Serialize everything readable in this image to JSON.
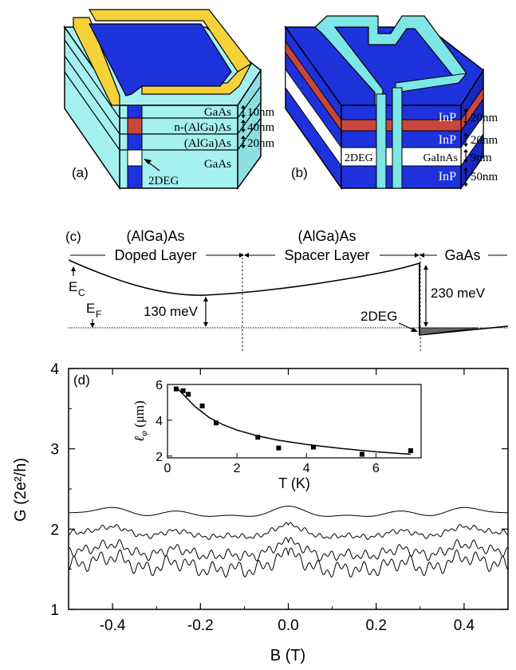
{
  "panel_a": {
    "label": "(a)",
    "layers": [
      "GaAs",
      "n-(AlGa)As",
      "(AlGa)As",
      "GaAs"
    ],
    "thicknesses": [
      "10nm",
      "40nm",
      "20nm"
    ],
    "twodeg": "2DEG",
    "colors": {
      "cyan": "#a5f0f0",
      "blue": "#1e32dc",
      "gold": "#f5d23c",
      "red": "#c8463c"
    }
  },
  "panel_b": {
    "label": "(b)",
    "layers": [
      "InP",
      "InP",
      "GaInAs",
      "InP"
    ],
    "thicknesses": [
      "20nm",
      "20nm",
      "9nm",
      "50nm"
    ],
    "twodeg": "2DEG",
    "colors": {
      "blue": "#1e32dc",
      "cyan": "#7de6e6",
      "red": "#c8463c"
    }
  },
  "panel_c": {
    "label": "(c)",
    "regions": [
      {
        "line1": "(AlGa)As",
        "line2": "Doped Layer"
      },
      {
        "line1": "(AlGa)As",
        "line2": "Spacer Layer"
      },
      {
        "line1": "",
        "line2": "GaAs"
      }
    ],
    "ec_label": "E",
    "ec_sub": "C",
    "ef_label": "E",
    "ef_sub": "F",
    "energy_1": "130 meV",
    "energy_2": "230 meV",
    "twodeg": "2DEG"
  },
  "panel_d": {
    "label": "(d)",
    "ylabel": "G (2e²/h)",
    "xlabel": "B (T)",
    "inset_xlabel": "T (K)"
  },
  "chart_data": [
    {
      "type": "line",
      "title": "",
      "xlabel": "B (T)",
      "ylabel": "G (2e²/h)",
      "xlim": [
        -0.5,
        0.5
      ],
      "ylim": [
        1,
        4
      ],
      "xticks": [
        -0.4,
        -0.2,
        0.0,
        0.2,
        0.4
      ],
      "xtick_labels": [
        "-0.4",
        "-0.2",
        "0.0",
        "0.2",
        "0.4"
      ],
      "yticks": [
        1,
        2,
        3,
        4
      ],
      "ytick_labels": [
        "1",
        "2",
        "3",
        "4"
      ],
      "grid": false,
      "series_offsets": [
        2.2,
        1.95,
        1.72,
        1.55
      ],
      "fluctuation_amplitudes": [
        0.12,
        0.14,
        0.16,
        0.18
      ]
    },
    {
      "type": "scatter",
      "title": "",
      "xlabel": "T (K)",
      "ylabel": "ℓφ (μm)",
      "xlim": [
        0,
        7.3
      ],
      "ylim": [
        1.9,
        6
      ],
      "xticks": [
        0,
        2,
        4,
        6
      ],
      "xtick_labels": [
        "0",
        "2",
        "4",
        "6"
      ],
      "yticks": [
        2,
        4,
        6
      ],
      "ytick_labels": [
        "2",
        "4",
        "6"
      ],
      "x": [
        0.25,
        0.45,
        0.6,
        1.0,
        1.4,
        2.6,
        3.2,
        4.2,
        5.6,
        7.0
      ],
      "y": [
        5.75,
        5.65,
        5.45,
        4.8,
        3.85,
        3.05,
        2.45,
        2.5,
        2.1,
        2.3
      ],
      "fit": {
        "x": [
          0.3,
          0.5,
          0.8,
          1.2,
          1.6,
          2.0,
          2.6,
          3.2,
          4.0,
          5.0,
          6.0,
          7.0
        ],
        "y": [
          5.75,
          5.35,
          4.75,
          4.15,
          3.75,
          3.45,
          3.12,
          2.88,
          2.65,
          2.42,
          2.24,
          2.1
        ]
      }
    }
  ]
}
